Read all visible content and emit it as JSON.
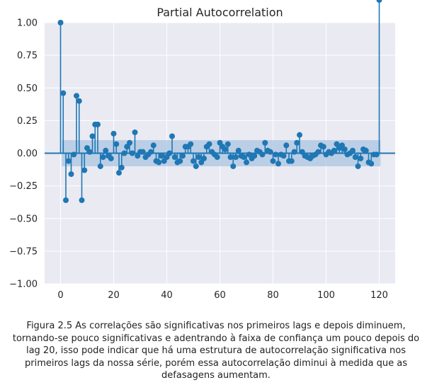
{
  "chart_data": {
    "type": "stem",
    "title": "Partial Autocorrelation",
    "xlabel": "",
    "ylabel": "",
    "xlim": [
      -6,
      126
    ],
    "ylim": [
      -1.0,
      1.0
    ],
    "xticks": [
      "0",
      "20",
      "40",
      "60",
      "80",
      "100",
      "120"
    ],
    "yticks": [
      "−1.00",
      "−0.75",
      "−0.50",
      "−0.25",
      "0.00",
      "0.25",
      "0.50",
      "0.75",
      "1.00"
    ],
    "grid": true,
    "confidence_band": 0.1,
    "colors": {
      "marker": "#1f77b4",
      "band": "#a9c4e2",
      "background": "#eaeaf2"
    },
    "lags": [
      0,
      1,
      2,
      3,
      4,
      5,
      6,
      7,
      8,
      9,
      10,
      11,
      12,
      13,
      14,
      15,
      16,
      17,
      18,
      19,
      20,
      21,
      22,
      23,
      24,
      25,
      26,
      27,
      28,
      29,
      30,
      31,
      32,
      33,
      34,
      35,
      36,
      37,
      38,
      39,
      40,
      41,
      42,
      43,
      44,
      45,
      46,
      47,
      48,
      49,
      50,
      51,
      52,
      53,
      54,
      55,
      56,
      57,
      58,
      59,
      60,
      61,
      62,
      63,
      64,
      65,
      66,
      67,
      68,
      69,
      70,
      71,
      72,
      73,
      74,
      75,
      76,
      77,
      78,
      79,
      80,
      81,
      82,
      83,
      84,
      85,
      86,
      87,
      88,
      89,
      90,
      91,
      92,
      93,
      94,
      95,
      96,
      97,
      98,
      99,
      100,
      101,
      102,
      103,
      104,
      105,
      106,
      107,
      108,
      109,
      110,
      111,
      112,
      113,
      114,
      115,
      116,
      117,
      118,
      119,
      120
    ],
    "values": [
      1.0,
      0.46,
      -0.36,
      -0.06,
      -0.16,
      -0.01,
      0.44,
      0.4,
      -0.36,
      -0.13,
      0.04,
      0.01,
      0.13,
      0.22,
      0.22,
      -0.1,
      -0.03,
      0.02,
      -0.02,
      -0.04,
      0.15,
      0.07,
      -0.15,
      -0.11,
      0.0,
      0.05,
      0.08,
      0.0,
      0.16,
      -0.02,
      0.01,
      0.01,
      -0.03,
      -0.01,
      0.01,
      0.06,
      -0.06,
      -0.07,
      -0.02,
      -0.06,
      -0.03,
      0.0,
      0.13,
      -0.03,
      -0.07,
      -0.06,
      -0.02,
      0.05,
      0.05,
      0.07,
      -0.06,
      -0.1,
      -0.03,
      -0.07,
      -0.04,
      0.05,
      0.07,
      0.01,
      -0.01,
      -0.03,
      0.08,
      0.05,
      0.03,
      0.07,
      -0.03,
      -0.1,
      -0.03,
      0.02,
      -0.02,
      -0.03,
      -0.07,
      -0.01,
      -0.04,
      -0.02,
      0.02,
      0.01,
      -0.01,
      0.08,
      0.02,
      0.01,
      -0.06,
      -0.01,
      -0.08,
      -0.01,
      -0.02,
      0.06,
      -0.06,
      -0.06,
      0.01,
      0.08,
      0.14,
      0.01,
      -0.02,
      -0.03,
      -0.04,
      -0.02,
      -0.01,
      0.01,
      0.06,
      0.05,
      -0.01,
      0.01,
      0.0,
      0.02,
      0.07,
      0.04,
      0.06,
      0.03,
      -0.01,
      0.0,
      0.02,
      -0.03,
      -0.1,
      -0.04,
      0.03,
      0.02,
      -0.07,
      -0.08,
      -0.01,
      -0.01
    ]
  },
  "caption": "Figura 2.5  As correlações são significativas nos primeiros lags e depois diminuem, tornando-se pouco significativas e adentrando à faixa de confiança um pouco depois do lag 20, isso pode indicar que há uma estrutura de autocorrelação significativa nos primeiros lags da nossa série, porém essa autocorrelação diminui à medida que as defasagens aumentam."
}
